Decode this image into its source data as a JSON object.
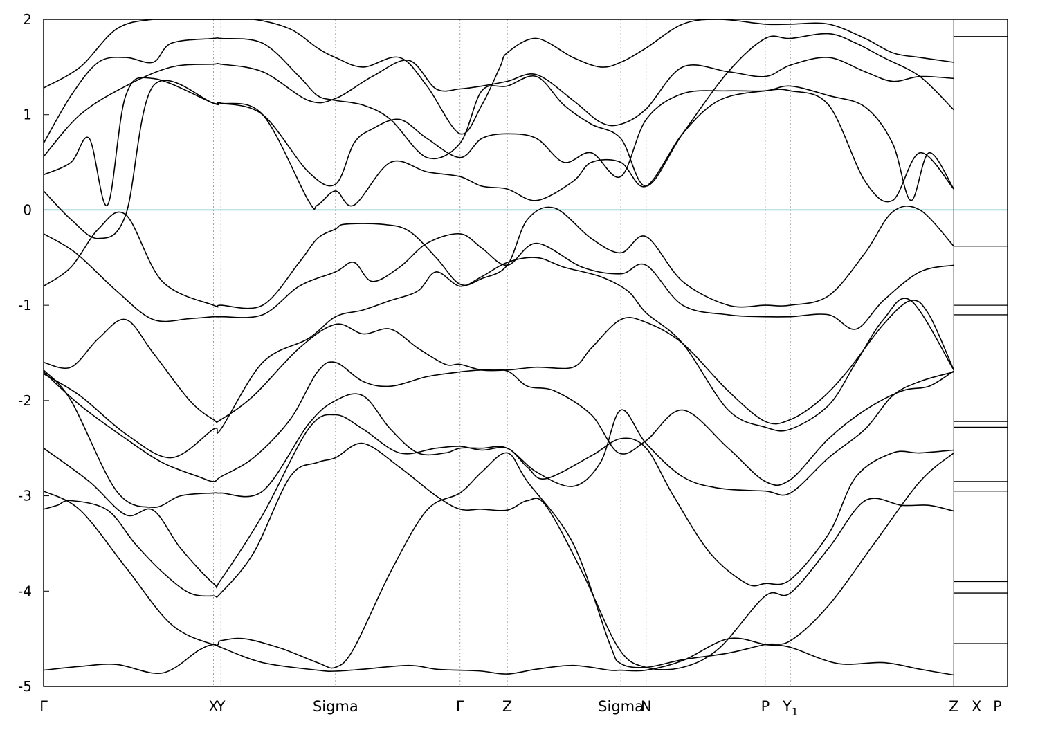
{
  "chart_data": {
    "type": "line",
    "title": "",
    "xlabel": "",
    "ylabel": "",
    "ylim": [
      -5,
      2
    ],
    "grid": false,
    "y_ticks": [
      2,
      1,
      0,
      -1,
      -2,
      -3,
      -4,
      -5
    ],
    "y_tick_labels": [
      "2",
      "1",
      "0",
      "-1",
      "-2",
      "-3",
      "-4",
      "-5"
    ],
    "x_ticks": [
      {
        "label": "Γ",
        "x": 0.0
      },
      {
        "label": "X",
        "x": 1.861
      },
      {
        "label": "Y",
        "x": 1.942
      },
      {
        "label": "Sigma",
        "x": 3.198
      },
      {
        "label": "Γ",
        "x": 4.562
      },
      {
        "label": "Z",
        "x": 5.08
      },
      {
        "label": "Sigma",
        "x": 6.323
      },
      {
        "label": "N",
        "x": 6.601
      },
      {
        "label": "P",
        "x": 7.906
      },
      {
        "label": "Y",
        "sub": "1",
        "x": 8.181
      },
      {
        "label": "Z",
        "x": 9.971
      },
      {
        "label": "X",
        "x": 10.22
      },
      {
        "label": "P",
        "x": 10.45
      }
    ],
    "xlim": [
      0,
      10.56
    ],
    "xlim_main": [
      0,
      9.971
    ],
    "dashed_verticals": [
      1.861,
      1.942,
      3.198,
      4.562,
      5.08,
      6.323,
      6.601,
      7.906,
      8.181
    ],
    "solid_verticals": [
      9.971
    ],
    "fermi_level": 0,
    "fermi_line_color": "#4fb3c8",
    "band_color": "#000000",
    "series": [
      {
        "x": [
          0,
          0.4,
          0.8,
          1.3,
          1.7,
          1.86,
          1.94,
          2.4,
          3.0,
          3.2,
          3.5,
          4.0,
          4.3,
          4.56,
          4.8,
          5.08,
          5.4,
          5.8,
          6.2,
          6.32,
          6.6,
          7.0,
          7.5,
          7.906,
          8.181,
          8.7,
          9.2,
          9.6,
          9.971
        ],
        "y": [
          -4.83,
          -4.79,
          -4.77,
          -4.86,
          -4.62,
          -4.56,
          -4.59,
          -4.75,
          -4.83,
          -4.84,
          -4.82,
          -4.78,
          -4.82,
          -4.83,
          -4.84,
          -4.87,
          -4.82,
          -4.78,
          -4.83,
          -4.83,
          -4.83,
          -4.73,
          -4.5,
          -4.56,
          -4.59,
          -4.76,
          -4.75,
          -4.82,
          -4.88
        ]
      },
      {
        "x": [
          0,
          0.4,
          0.9,
          1.4,
          1.861,
          1.942,
          2.2,
          2.6,
          3.0,
          3.198,
          3.4,
          3.8,
          4.2,
          4.562,
          4.8,
          5.08,
          5.3,
          5.8,
          6.2,
          6.323,
          6.601,
          7.0,
          7.5,
          7.906,
          8.181,
          8.6,
          9.1,
          9.6,
          9.971
        ],
        "y": [
          -2.95,
          -3.15,
          -3.75,
          -4.35,
          -4.56,
          -4.52,
          -4.5,
          -4.6,
          -4.75,
          -4.8,
          -4.6,
          -3.8,
          -3.15,
          -2.97,
          -2.75,
          -2.55,
          -2.85,
          -3.5,
          -4.55,
          -4.76,
          -4.8,
          -4.72,
          -4.65,
          -4.56,
          -4.52,
          -4.15,
          -3.5,
          -2.85,
          -2.55
        ]
      },
      {
        "x": [
          0,
          0.15,
          0.3,
          0.7,
          1.0,
          1.3,
          1.6,
          1.861,
          1.942,
          2.3,
          2.7,
          3.0,
          3.198,
          3.5,
          3.9,
          4.3,
          4.562,
          4.8,
          5.08,
          5.3,
          5.5,
          5.9,
          6.3,
          6.6,
          7.0,
          7.4,
          7.906,
          8.181,
          8.6,
          9.0,
          9.4,
          9.7,
          9.971
        ],
        "y": [
          -3.14,
          -3.1,
          -3.05,
          -3.15,
          -3.5,
          -3.8,
          -4.02,
          -4.05,
          -4.02,
          -3.6,
          -2.8,
          -2.65,
          -2.6,
          -2.45,
          -2.7,
          -3.0,
          -3.14,
          -3.14,
          -3.15,
          -3.05,
          -3.1,
          -3.8,
          -4.6,
          -4.8,
          -4.8,
          -4.6,
          -4.05,
          -4.02,
          -3.55,
          -3.05,
          -3.1,
          -3.1,
          -3.16
        ]
      },
      {
        "x": [
          0,
          0.5,
          0.9,
          1.2,
          1.5,
          1.861,
          1.942,
          2.4,
          2.9,
          3.198,
          3.5,
          3.9,
          4.3,
          4.562,
          4.8,
          5.08,
          5.3,
          5.5,
          6.0,
          6.323,
          6.601,
          6.9,
          7.3,
          7.7,
          7.906,
          8.181,
          8.6,
          8.9,
          9.3,
          9.6,
          9.971
        ],
        "y": [
          -2.5,
          -2.85,
          -3.2,
          -3.15,
          -3.55,
          -3.92,
          -3.88,
          -3.2,
          -2.3,
          -2.15,
          -2.3,
          -2.55,
          -2.5,
          -2.48,
          -2.52,
          -2.5,
          -2.7,
          -2.82,
          -2.58,
          -2.4,
          -2.5,
          -3.0,
          -3.6,
          -3.92,
          -3.92,
          -3.88,
          -3.4,
          -2.8,
          -2.55,
          -2.55,
          -2.52
        ]
      },
      {
        "x": [
          0,
          0.4,
          0.9,
          1.3,
          1.7,
          1.861,
          1.942,
          2.3,
          2.7,
          3.0,
          3.198,
          3.5,
          3.8,
          4.2,
          4.562,
          4.8,
          5.08,
          5.3,
          5.6,
          6.0,
          6.3,
          6.601,
          7.0,
          7.5,
          7.906,
          8.181,
          8.6,
          9.0,
          9.4,
          9.7,
          9.971
        ],
        "y": [
          -1.7,
          -2.05,
          -2.4,
          -2.65,
          -2.8,
          -2.85,
          -2.8,
          -2.6,
          -2.2,
          -1.7,
          -1.6,
          -1.8,
          -1.85,
          -1.75,
          -1.7,
          -1.68,
          -1.69,
          -1.85,
          -1.9,
          -2.15,
          -2.55,
          -2.42,
          -2.1,
          -2.5,
          -2.85,
          -2.83,
          -2.4,
          -2.1,
          -1.9,
          -1.85,
          -1.69
        ]
      },
      {
        "x": [
          0,
          0.3,
          0.8,
          1.2,
          1.5,
          1.861,
          1.942,
          2.4,
          2.9,
          3.198,
          3.5,
          3.8,
          4.1,
          4.4,
          4.562,
          4.8,
          5.08,
          5.4,
          5.8,
          6.1,
          6.323,
          6.601,
          7.0,
          7.4,
          7.906,
          8.181,
          8.6,
          9.0,
          9.3,
          9.6,
          9.971
        ],
        "y": [
          -1.68,
          -2.0,
          -2.95,
          -3.12,
          -3.0,
          -2.97,
          -2.97,
          -2.95,
          -2.25,
          -2.0,
          -1.95,
          -2.3,
          -2.55,
          -2.55,
          -2.5,
          -2.5,
          -2.5,
          -2.75,
          -2.9,
          -2.65,
          -2.1,
          -2.45,
          -2.8,
          -2.92,
          -2.95,
          -2.97,
          -2.6,
          -2.3,
          -1.95,
          -1.8,
          -1.7
        ]
      },
      {
        "x": [
          0,
          0.3,
          0.6,
          0.9,
          1.2,
          1.6,
          1.861,
          1.942,
          2.3,
          2.8,
          3.198,
          3.5,
          3.8,
          4.1,
          4.4,
          4.562,
          4.8,
          5.08,
          5.4,
          5.8,
          6.0,
          6.323,
          6.601,
          7.0,
          7.5,
          7.906,
          8.181,
          8.5,
          8.8,
          9.2,
          9.5,
          9.7,
          9.971
        ],
        "y": [
          -1.6,
          -1.65,
          -1.35,
          -1.15,
          -1.5,
          -2.0,
          -2.2,
          -2.2,
          -1.95,
          -1.45,
          -1.2,
          -1.3,
          -1.25,
          -1.45,
          -1.62,
          -1.62,
          -1.68,
          -1.68,
          -1.65,
          -1.65,
          -1.45,
          -1.15,
          -1.18,
          -1.4,
          -1.9,
          -2.22,
          -2.2,
          -2.0,
          -1.7,
          -1.2,
          -0.95,
          -1.1,
          -1.68
        ]
      },
      {
        "x": [
          0,
          0.4,
          0.9,
          1.4,
          1.861,
          1.942,
          2.4,
          2.9,
          3.198,
          3.5,
          3.8,
          4.1,
          4.3,
          4.562,
          4.8,
          5.08,
          5.4,
          5.7,
          6.1,
          6.4,
          6.601,
          7.0,
          7.5,
          7.906,
          8.181,
          8.6,
          8.9,
          9.2,
          9.5,
          9.971
        ],
        "y": [
          -1.72,
          -1.95,
          -2.35,
          -2.6,
          -2.3,
          -2.3,
          -1.6,
          -1.35,
          -1.12,
          -1.05,
          -0.95,
          -0.85,
          -0.65,
          -0.8,
          -0.7,
          -0.55,
          -0.5,
          -0.6,
          -0.7,
          -0.85,
          -1.08,
          -1.4,
          -2.1,
          -2.28,
          -2.3,
          -2.05,
          -1.6,
          -1.15,
          -0.95,
          -1.68
        ]
      },
      {
        "x": [
          0,
          0.35,
          0.8,
          1.2,
          1.6,
          1.861,
          1.942,
          2.4,
          2.8,
          3.198,
          3.4,
          3.6,
          3.9,
          4.2,
          4.562,
          4.8,
          5.08,
          5.4,
          5.9,
          6.323,
          6.601,
          7.0,
          7.5,
          7.906,
          8.181,
          8.6,
          8.9,
          9.2,
          9.6,
          9.971
        ],
        "y": [
          -0.25,
          -0.45,
          -0.85,
          -1.15,
          -1.14,
          -1.12,
          -1.12,
          -1.1,
          -0.8,
          -0.65,
          -0.55,
          -0.75,
          -0.6,
          -0.35,
          -0.25,
          -0.4,
          -0.58,
          -0.35,
          -0.6,
          -0.67,
          -0.58,
          -1.0,
          -1.1,
          -1.12,
          -1.12,
          -1.1,
          -1.25,
          -0.95,
          -0.65,
          -0.58
        ]
      },
      {
        "x": [
          0,
          0.3,
          0.6,
          0.9,
          1.3,
          1.861,
          1.942,
          2.4,
          2.8,
          3.0,
          3.198,
          3.3,
          3.7,
          4.0,
          4.3,
          4.562,
          4.8,
          5.08,
          5.3,
          5.6,
          6.0,
          6.323,
          6.601,
          7.0,
          7.5,
          7.906,
          8.181,
          8.6,
          9.0,
          9.3,
          9.6,
          9.971
        ],
        "y": [
          -0.8,
          -0.6,
          -0.2,
          -0.05,
          -0.75,
          -1.0,
          -1.0,
          -1.0,
          -0.55,
          -0.3,
          -0.2,
          -0.15,
          -0.15,
          -0.22,
          -0.5,
          -0.78,
          -0.72,
          -0.58,
          -0.1,
          0.02,
          -0.3,
          -0.45,
          -0.28,
          -0.75,
          -1.0,
          -1.0,
          -1.0,
          -0.9,
          -0.45,
          -0.02,
          0.0,
          -0.38
        ]
      },
      {
        "x": [
          0,
          0.3,
          0.6,
          0.9,
          1.2,
          1.861,
          1.942,
          2.4,
          2.9,
          3.0,
          3.198,
          3.4,
          3.8,
          4.2,
          4.562,
          4.8,
          5.08,
          5.4,
          5.8,
          6.0,
          6.323,
          6.601,
          7.0,
          7.4,
          7.906,
          8.181,
          8.6,
          9.0,
          9.3,
          9.6,
          9.971
        ],
        "y": [
          0.2,
          -0.1,
          -0.3,
          -0.05,
          1.3,
          1.12,
          1.12,
          1.0,
          0.1,
          0.05,
          0.2,
          0.05,
          0.5,
          0.4,
          0.35,
          0.25,
          0.22,
          0.1,
          0.3,
          0.5,
          0.5,
          0.25,
          0.8,
          1.15,
          1.25,
          1.25,
          1.1,
          0.3,
          0.1,
          0.6,
          0.22
        ]
      },
      {
        "x": [
          0,
          0.3,
          0.5,
          0.7,
          0.9,
          1.2,
          1.861,
          1.942,
          2.4,
          2.9,
          3.198,
          3.4,
          3.6,
          3.9,
          4.2,
          4.562,
          4.8,
          5.08,
          5.4,
          5.7,
          6.0,
          6.323,
          6.601,
          7.0,
          7.5,
          7.906,
          8.181,
          8.6,
          9.0,
          9.3,
          9.5,
          9.7,
          9.971
        ],
        "y": [
          0.37,
          0.5,
          0.75,
          0.05,
          1.2,
          1.38,
          1.12,
          1.12,
          1.0,
          0.4,
          0.27,
          0.7,
          0.85,
          0.95,
          0.75,
          0.55,
          0.75,
          0.8,
          0.75,
          0.5,
          0.6,
          0.35,
          0.95,
          1.22,
          1.25,
          1.25,
          1.3,
          1.2,
          1.08,
          0.7,
          0.1,
          0.6,
          0.22
        ]
      },
      {
        "x": [
          0,
          0.4,
          0.9,
          1.4,
          1.861,
          1.942,
          2.4,
          2.9,
          3.198,
          3.6,
          4.0,
          4.3,
          4.562,
          4.8,
          5.08,
          5.4,
          5.8,
          6.1,
          6.323,
          6.601,
          7.0,
          7.5,
          7.906,
          8.181,
          8.6,
          9.0,
          9.3,
          9.6,
          9.971
        ],
        "y": [
          0.56,
          1.0,
          1.3,
          1.5,
          1.53,
          1.53,
          1.45,
          1.15,
          1.17,
          1.4,
          1.57,
          1.27,
          1.27,
          1.3,
          1.35,
          1.42,
          1.15,
          0.92,
          0.9,
          1.06,
          1.5,
          1.45,
          1.4,
          1.52,
          1.6,
          1.45,
          1.35,
          1.4,
          1.38
        ]
      },
      {
        "x": [
          0,
          0.3,
          0.6,
          0.9,
          1.2,
          1.4,
          1.861,
          1.942,
          2.4,
          2.8,
          3.0,
          3.198,
          3.5,
          3.8,
          4.2,
          4.562,
          4.8,
          5.08,
          5.4,
          5.7,
          6.0,
          6.323,
          6.601,
          7.0,
          7.5,
          7.906,
          8.181,
          8.6,
          8.9,
          9.2,
          9.6,
          9.971
        ],
        "y": [
          0.7,
          1.2,
          1.55,
          1.6,
          1.55,
          1.75,
          1.8,
          1.8,
          1.75,
          1.4,
          1.2,
          1.15,
          1.1,
          0.95,
          0.55,
          0.7,
          1.25,
          1.3,
          1.4,
          1.1,
          0.9,
          0.75,
          0.25,
          0.8,
          1.45,
          1.8,
          1.8,
          1.85,
          1.75,
          1.6,
          1.4,
          1.05
        ]
      },
      {
        "x": [
          0,
          0.4,
          0.8,
          1.2,
          1.6,
          1.861,
          1.942,
          2.3,
          2.7,
          3.0,
          3.198,
          3.5,
          3.9,
          4.2,
          4.562,
          4.8,
          5.0,
          5.08,
          5.4,
          5.8,
          6.1,
          6.323,
          6.601,
          7.0,
          7.4,
          7.906,
          8.181,
          8.6,
          9.0,
          9.3,
          9.6,
          9.971
        ],
        "y": [
          1.28,
          1.5,
          1.9,
          2.0,
          2.0,
          2.0,
          2.0,
          2.0,
          1.9,
          1.7,
          1.6,
          1.5,
          1.6,
          1.3,
          0.8,
          1.1,
          1.5,
          1.65,
          1.8,
          1.6,
          1.5,
          1.55,
          1.7,
          1.95,
          2.0,
          1.95,
          1.95,
          1.95,
          1.8,
          1.65,
          1.6,
          1.55
        ]
      }
    ],
    "side_panel": {
      "x_range": [
        9.971,
        10.56
      ],
      "levels": [
        1.82,
        -0.38,
        -1.0,
        -1.1,
        -2.22,
        -2.28,
        -2.85,
        -2.95,
        -3.9,
        -4.02,
        -4.55
      ]
    }
  }
}
